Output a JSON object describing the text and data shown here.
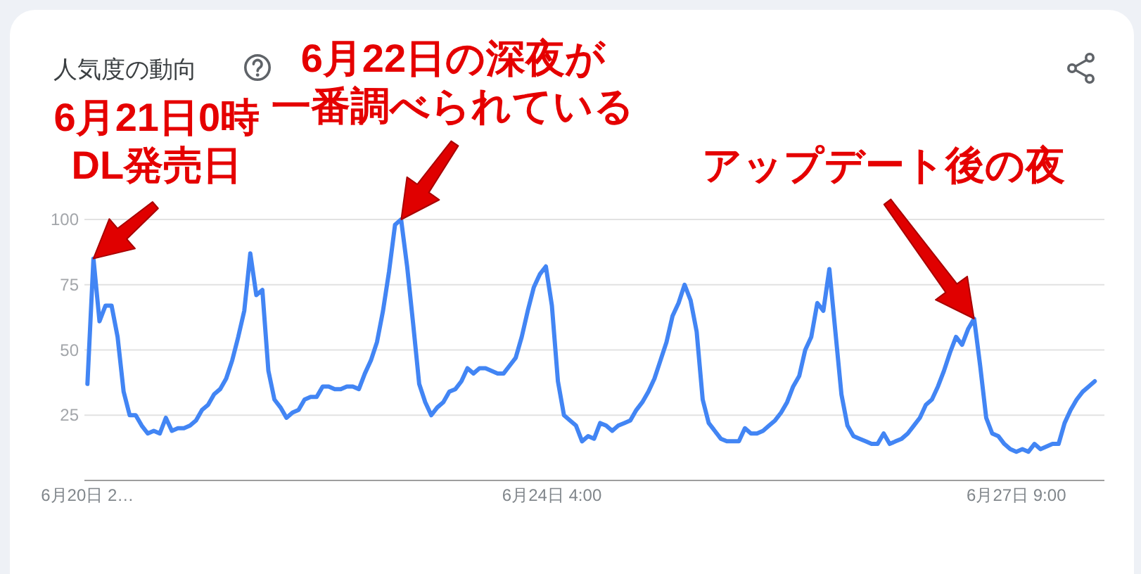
{
  "chart_data": {
    "type": "line",
    "title": "人気度の動向",
    "categories": [
      "6月20日 2…",
      null,
      null,
      null,
      null,
      null,
      null,
      null,
      null,
      null,
      null,
      null,
      null,
      null,
      null,
      null,
      null,
      null,
      null,
      null,
      null,
      null,
      null,
      null,
      null,
      null,
      null,
      null,
      null,
      null,
      null,
      null,
      null,
      null,
      null,
      null,
      null,
      null,
      null,
      null,
      null,
      null,
      null,
      null,
      null,
      null,
      null,
      null,
      null,
      null,
      null,
      null,
      null,
      null,
      null,
      null,
      null,
      null,
      null,
      null,
      null,
      null,
      null,
      null,
      null,
      null,
      null,
      null,
      null,
      null,
      null,
      null,
      null,
      null,
      null,
      null,
      null,
      "6月24日 4:00",
      null,
      null,
      null,
      null,
      null,
      null,
      null,
      null,
      null,
      null,
      null,
      null,
      null,
      null,
      null,
      null,
      null,
      null,
      null,
      null,
      null,
      null,
      null,
      null,
      null,
      null,
      null,
      null,
      null,
      null,
      null,
      null,
      null,
      null,
      null,
      null,
      null,
      null,
      null,
      null,
      null,
      null,
      null,
      null,
      null,
      null,
      null,
      null,
      null,
      null,
      null,
      null,
      null,
      null,
      null,
      null,
      null,
      null,
      null,
      null,
      null,
      null,
      null,
      null,
      null,
      null,
      null,
      null,
      null,
      null,
      null,
      null,
      null,
      null,
      null,
      null,
      "6月27日 9:00",
      null,
      null,
      null,
      null,
      null,
      null,
      null,
      null,
      null,
      null,
      null,
      null,
      null
    ],
    "series": [
      {
        "color": "#4285f4",
        "values": [
          37,
          85,
          61,
          67,
          67,
          55,
          34,
          25,
          25,
          21,
          18,
          19,
          18,
          24,
          19,
          20,
          20,
          21,
          23,
          27,
          29,
          33,
          35,
          39,
          46,
          55,
          65,
          87,
          71,
          73,
          42,
          31,
          28,
          24,
          26,
          27,
          31,
          32,
          32,
          36,
          36,
          35,
          35,
          36,
          36,
          35,
          41,
          46,
          53,
          65,
          80,
          98,
          100,
          82,
          60,
          37,
          30,
          25,
          28,
          30,
          34,
          35,
          38,
          43,
          41,
          43,
          43,
          42,
          41,
          41,
          44,
          47,
          55,
          65,
          74,
          79,
          82,
          67,
          38,
          25,
          23,
          21,
          15,
          17,
          16,
          22,
          21,
          19,
          21,
          22,
          23,
          27,
          30,
          34,
          39,
          46,
          53,
          63,
          68,
          75,
          69,
          57,
          31,
          22,
          19,
          16,
          15,
          15,
          15,
          20,
          18,
          18,
          19,
          21,
          23,
          26,
          30,
          36,
          40,
          50,
          55,
          68,
          65,
          81,
          57,
          33,
          21,
          17,
          16,
          15,
          14,
          14,
          18,
          14,
          15,
          16,
          18,
          21,
          24,
          29,
          31,
          36,
          42,
          49,
          55,
          52,
          58,
          62,
          44,
          24,
          18,
          17,
          14,
          12,
          11,
          12,
          11,
          14,
          12,
          13,
          14,
          14,
          22,
          27,
          31,
          34,
          36,
          38
        ]
      }
    ],
    "ylim": [
      0,
      100
    ],
    "yticks": [
      25,
      50,
      75,
      100
    ],
    "grid": "y",
    "annotations": [
      "6月21日0時DL発売日",
      "6月22日の深夜が一番調べられている",
      "アップデート後の夜"
    ]
  }
}
